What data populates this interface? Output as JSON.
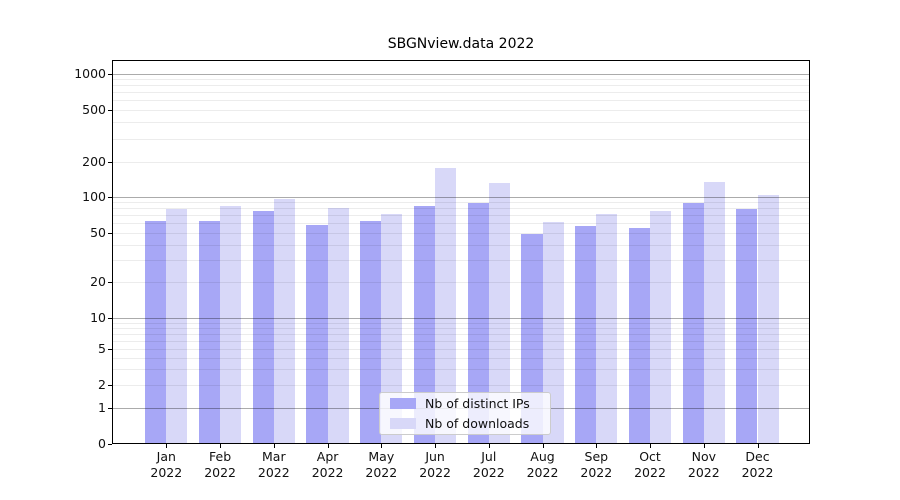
{
  "chart_data": {
    "type": "bar",
    "title": "SBGNview.data 2022",
    "categories": [
      "Jan",
      "Feb",
      "Mar",
      "Apr",
      "May",
      "Jun",
      "Jul",
      "Aug",
      "Sep",
      "Oct",
      "Nov",
      "Dec"
    ],
    "year_label": "2022",
    "series": [
      {
        "name": "Nb of distinct IPs",
        "color": "#a7a7f6",
        "values": [
          62,
          63,
          75,
          58,
          63,
          83,
          88,
          49,
          57,
          55,
          88,
          79
        ]
      },
      {
        "name": "Nb of downloads",
        "color": "#d8d8f8",
        "values": [
          78,
          84,
          95,
          80,
          71,
          175,
          130,
          61,
          71,
          75,
          134,
          104
        ]
      }
    ],
    "xlabel": "",
    "ylabel": "",
    "yscale": "log-with-zero",
    "yticks": [
      0,
      1,
      2,
      5,
      10,
      20,
      50,
      100,
      200,
      500,
      1000
    ],
    "ylim": [
      0,
      1250
    ],
    "grid": true,
    "legend_position": "lower center"
  }
}
